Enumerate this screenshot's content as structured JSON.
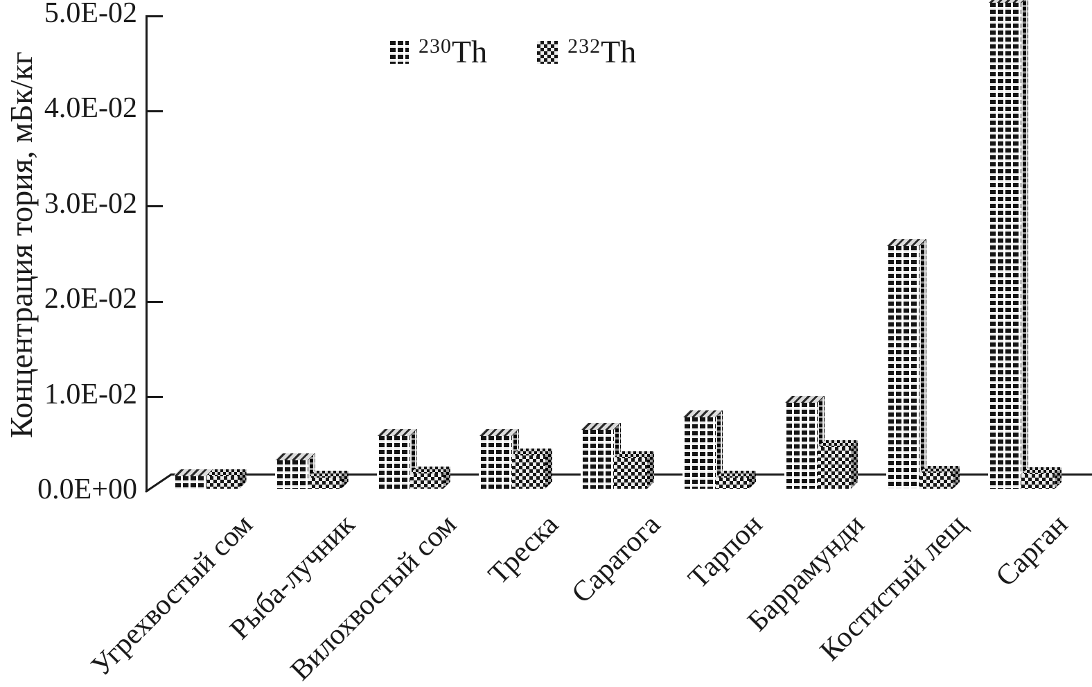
{
  "chart_data": {
    "type": "bar",
    "title": "",
    "ylabel": "Концентрация тория, мБк/кг",
    "xlabel": "",
    "categories": [
      "Угрехвостый сом",
      "Рыба-лучник",
      "Вилохвостый сом",
      "Треска",
      "Саратога",
      "Тарпон",
      "Баррамунди",
      "Костистый лещ",
      "Сарган"
    ],
    "series": [
      {
        "name": "230Th",
        "isotope": "230",
        "element": "Th",
        "values": [
          0.0013,
          0.003,
          0.0055,
          0.0055,
          0.0062,
          0.0075,
          0.009,
          0.0255,
          0.051
        ]
      },
      {
        "name": "232Th",
        "isotope": "232",
        "element": "Th",
        "values": [
          0.0013,
          0.0012,
          0.0016,
          0.0035,
          0.0032,
          0.0012,
          0.0044,
          0.0017,
          0.0015
        ]
      }
    ],
    "ylim": [
      0,
      0.05
    ],
    "ytick_labels": [
      "0.0E+00",
      "1.0E-02",
      "2.0E-02",
      "3.0E-02",
      "4.0E-02",
      "5.0E-02"
    ],
    "legend_position": "top-center",
    "grid": false,
    "pseudo_3d": true
  },
  "colors": {
    "ink": "#1a1a1a",
    "paper": "#ffffff"
  }
}
